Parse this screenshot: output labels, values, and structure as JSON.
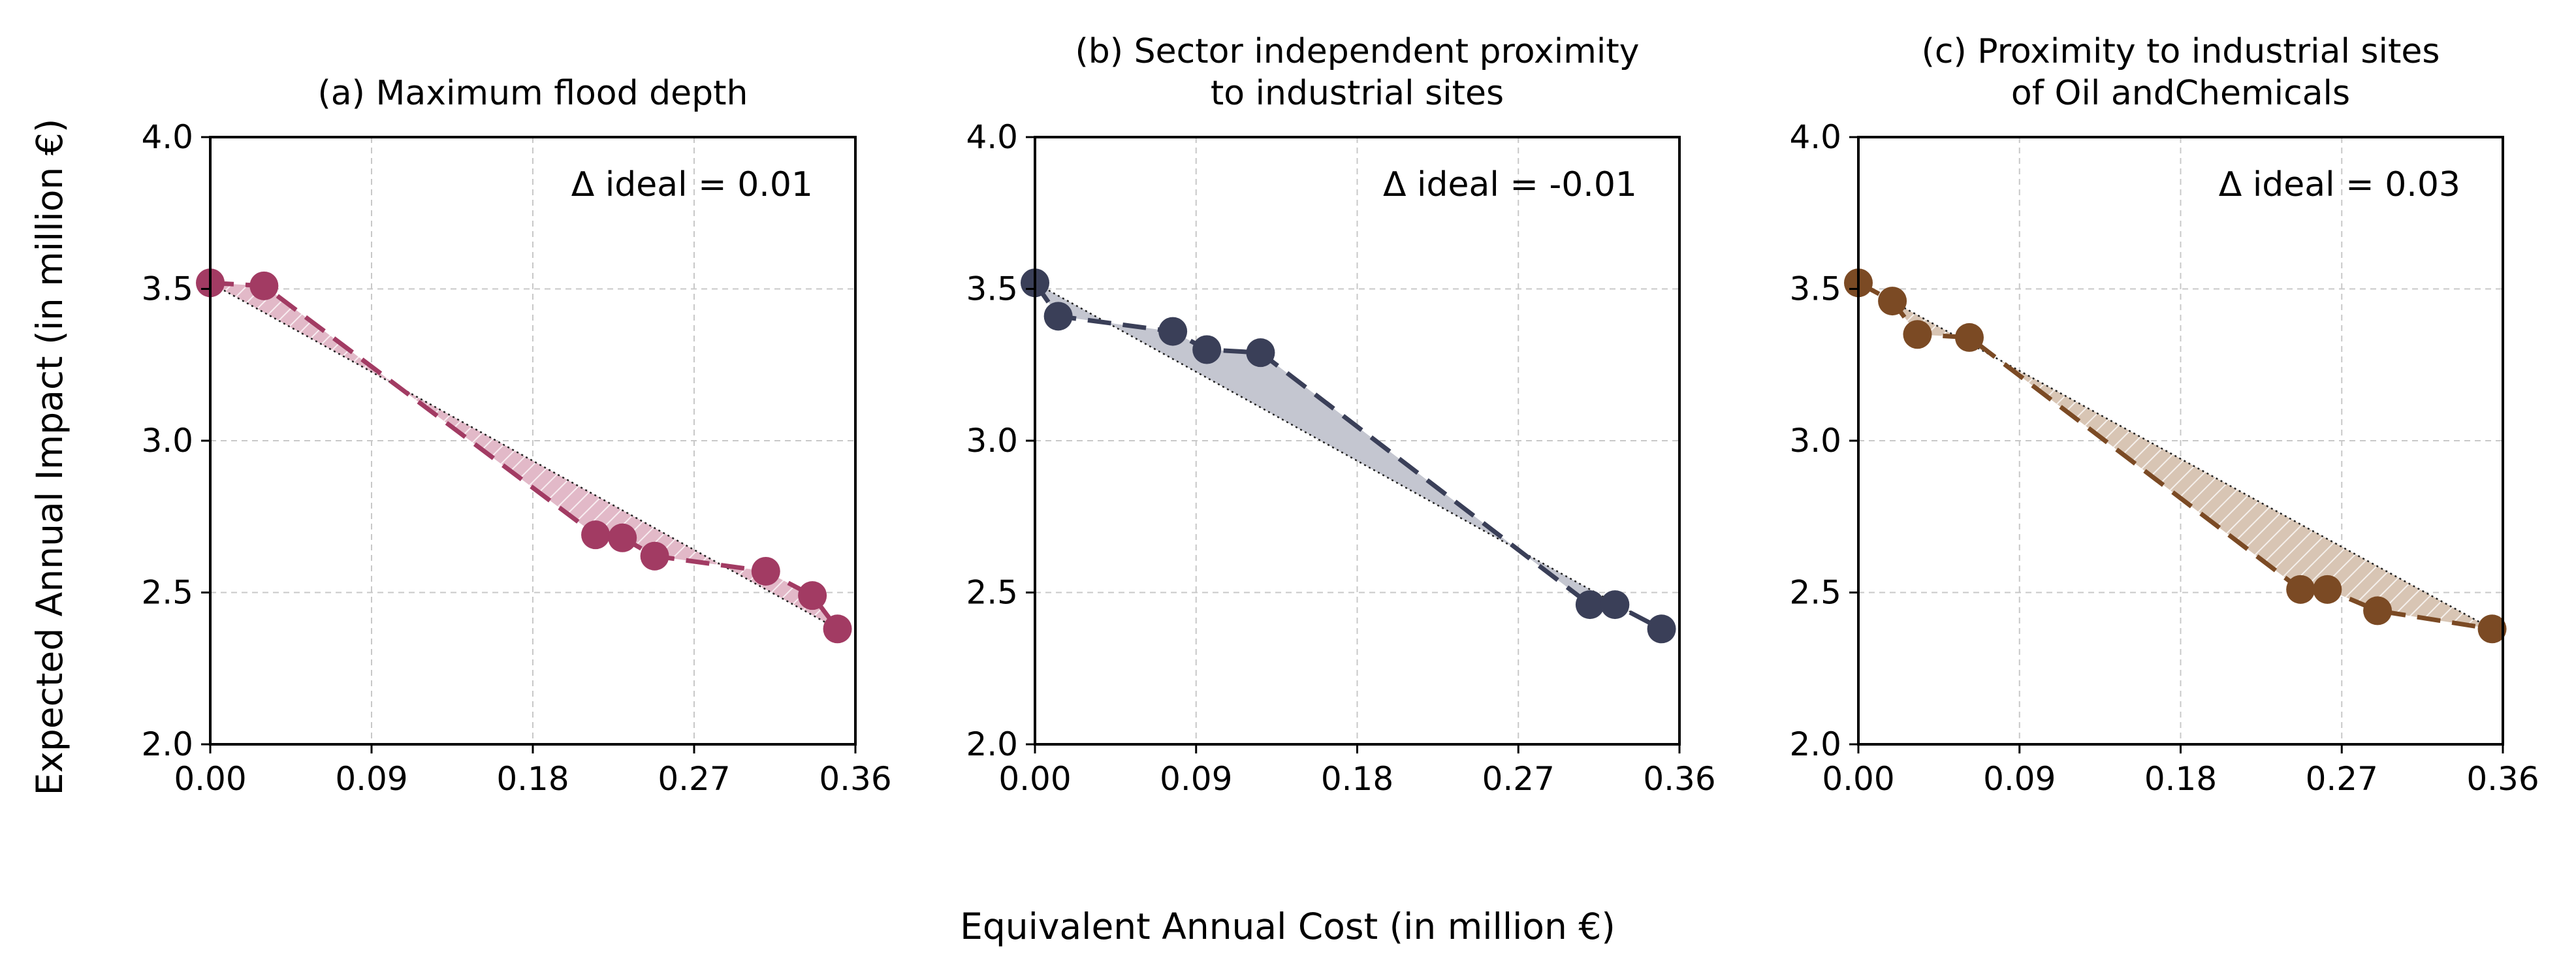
{
  "figure": {
    "ylabel": "Expected Annual Impact (in million €)",
    "xlabel": "Equivalent Annual Cost (in million €)"
  },
  "chart_data": [
    {
      "type": "line",
      "title": "(a) Maximum flood depth",
      "annotation": "Δ ideal = 0.01",
      "color": "#A23B63",
      "fill_color": "#E2B9C8",
      "hatched": true,
      "xlim": [
        0.0,
        0.36
      ],
      "ylim": [
        2.0,
        4.0
      ],
      "xticks": [
        "0.00",
        "0.09",
        "0.18",
        "0.27",
        "0.36"
      ],
      "yticks": [
        "2.0",
        "2.5",
        "3.0",
        "3.5",
        "4.0"
      ],
      "grid": true,
      "x": [
        0.0,
        0.03,
        0.215,
        0.23,
        0.248,
        0.31,
        0.336,
        0.35
      ],
      "y": [
        3.52,
        3.51,
        2.69,
        2.68,
        2.62,
        2.57,
        2.49,
        2.38
      ]
    },
    {
      "type": "line",
      "title": "(b) Sector independent proximity\nto industrial sites",
      "annotation": "Δ ideal = -0.01",
      "color": "#3A3F58",
      "fill_color": "#C4C6D0",
      "hatched": false,
      "xlim": [
        0.0,
        0.36
      ],
      "ylim": [
        2.0,
        4.0
      ],
      "xticks": [
        "0.00",
        "0.09",
        "0.18",
        "0.27",
        "0.36"
      ],
      "yticks": [
        "2.0",
        "2.5",
        "3.0",
        "3.5",
        "4.0"
      ],
      "grid": true,
      "x": [
        0.0,
        0.013,
        0.077,
        0.096,
        0.126,
        0.31,
        0.324,
        0.35
      ],
      "y": [
        3.52,
        3.41,
        3.36,
        3.3,
        3.29,
        2.46,
        2.46,
        2.38
      ]
    },
    {
      "type": "line",
      "title": "(c) Proximity to industrial sites\nof Oil andChemicals",
      "annotation": "Δ ideal = 0.03",
      "color": "#7B4A24",
      "fill_color": "#D8C5B4",
      "hatched": true,
      "xlim": [
        0.0,
        0.36
      ],
      "ylim": [
        2.0,
        4.0
      ],
      "xticks": [
        "0.00",
        "0.09",
        "0.18",
        "0.27",
        "0.36"
      ],
      "yticks": [
        "2.0",
        "2.5",
        "3.0",
        "3.5",
        "4.0"
      ],
      "grid": true,
      "x": [
        0.0,
        0.019,
        0.033,
        0.062,
        0.247,
        0.262,
        0.29,
        0.354
      ],
      "y": [
        3.52,
        3.46,
        3.35,
        3.34,
        2.51,
        2.51,
        2.44,
        2.38
      ]
    }
  ]
}
